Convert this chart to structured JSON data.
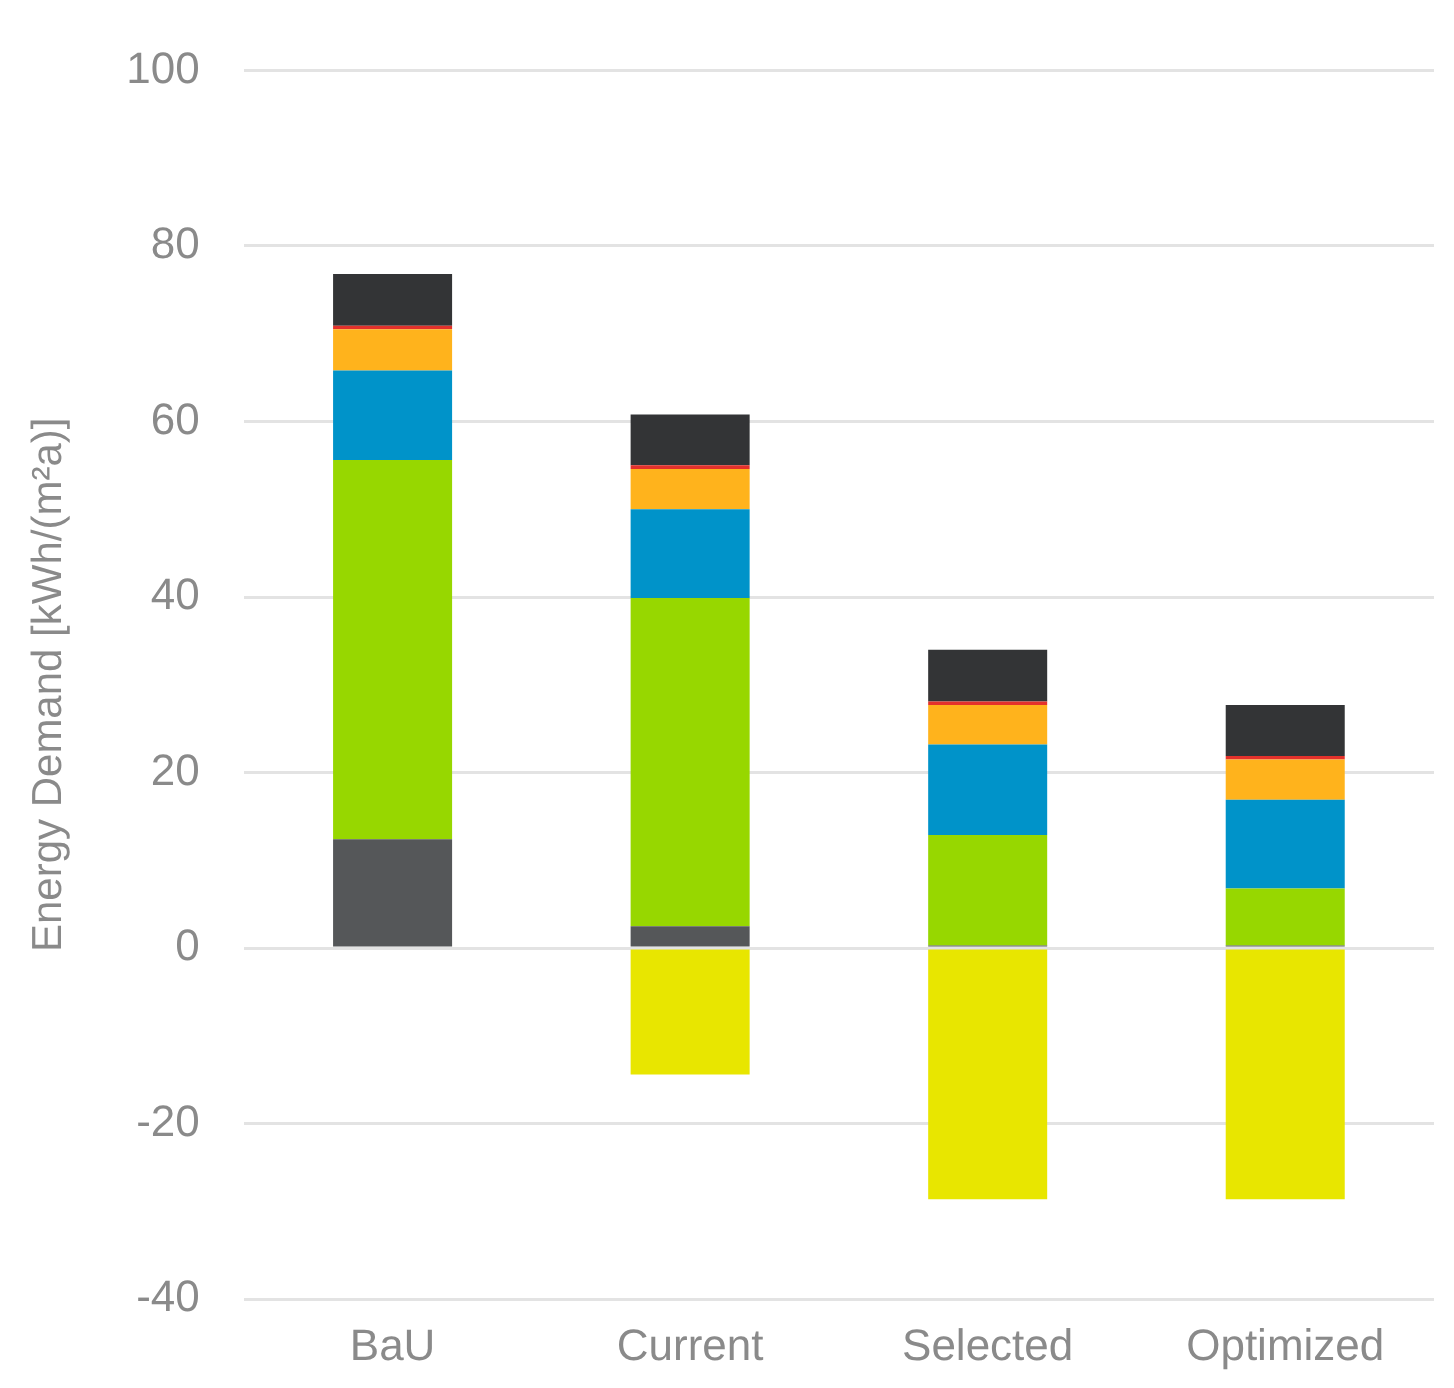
{
  "chart_data": {
    "type": "bar",
    "stacked": true,
    "ylabel": "Energy Demand [kWh/(m²a)]",
    "categories": [
      "BaU",
      "Current",
      "Selected",
      "Optimized"
    ],
    "series": [
      {
        "color": "#555759",
        "values": [
          12.4,
          2.5,
          0.3,
          0.3
        ]
      },
      {
        "color": "#97d700",
        "values": [
          43.2,
          37.4,
          12.6,
          6.5
        ]
      },
      {
        "color": "#0093c9",
        "values": [
          10.2,
          10.1,
          10.3,
          10.1
        ]
      },
      {
        "color": "#ffb31c",
        "values": [
          4.7,
          4.6,
          4.5,
          4.6
        ]
      },
      {
        "color": "#e4312b",
        "values": [
          0.4,
          0.4,
          0.4,
          0.4
        ]
      },
      {
        "color": "#333436",
        "values": [
          5.9,
          5.8,
          5.9,
          5.8
        ]
      },
      {
        "color": "#e8e600",
        "values": [
          null,
          -14.4,
          -28.6,
          -28.6
        ]
      }
    ],
    "ylim": [
      -40,
      100
    ],
    "yticks": [
      -40,
      -20,
      0,
      20,
      40,
      60,
      80,
      100
    ],
    "grid": "y",
    "legend": false
  }
}
